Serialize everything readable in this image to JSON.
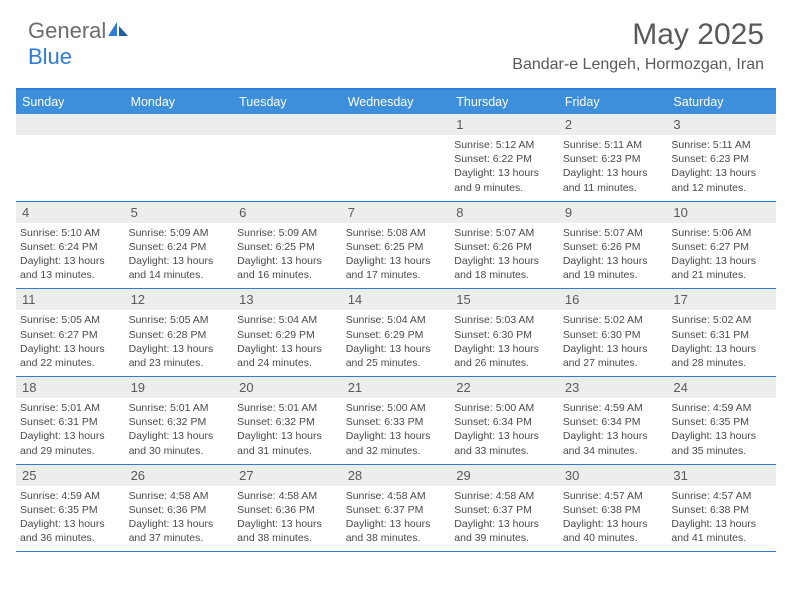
{
  "logo": {
    "text1": "General",
    "text2": "Blue"
  },
  "title": "May 2025",
  "location": "Bandar-e Lengeh, Hormozgan, Iran",
  "colors": {
    "header_bar": "#3d8fdb",
    "border": "#2e7cd6",
    "daynum_bg": "#eceded",
    "text": "#4a4a4a"
  },
  "weekdays": [
    "Sunday",
    "Monday",
    "Tuesday",
    "Wednesday",
    "Thursday",
    "Friday",
    "Saturday"
  ],
  "weeks": [
    [
      {
        "n": "",
        "sr": "",
        "ss": "",
        "dl": ""
      },
      {
        "n": "",
        "sr": "",
        "ss": "",
        "dl": ""
      },
      {
        "n": "",
        "sr": "",
        "ss": "",
        "dl": ""
      },
      {
        "n": "",
        "sr": "",
        "ss": "",
        "dl": ""
      },
      {
        "n": "1",
        "sr": "Sunrise: 5:12 AM",
        "ss": "Sunset: 6:22 PM",
        "dl": "Daylight: 13 hours and 9 minutes."
      },
      {
        "n": "2",
        "sr": "Sunrise: 5:11 AM",
        "ss": "Sunset: 6:23 PM",
        "dl": "Daylight: 13 hours and 11 minutes."
      },
      {
        "n": "3",
        "sr": "Sunrise: 5:11 AM",
        "ss": "Sunset: 6:23 PM",
        "dl": "Daylight: 13 hours and 12 minutes."
      }
    ],
    [
      {
        "n": "4",
        "sr": "Sunrise: 5:10 AM",
        "ss": "Sunset: 6:24 PM",
        "dl": "Daylight: 13 hours and 13 minutes."
      },
      {
        "n": "5",
        "sr": "Sunrise: 5:09 AM",
        "ss": "Sunset: 6:24 PM",
        "dl": "Daylight: 13 hours and 14 minutes."
      },
      {
        "n": "6",
        "sr": "Sunrise: 5:09 AM",
        "ss": "Sunset: 6:25 PM",
        "dl": "Daylight: 13 hours and 16 minutes."
      },
      {
        "n": "7",
        "sr": "Sunrise: 5:08 AM",
        "ss": "Sunset: 6:25 PM",
        "dl": "Daylight: 13 hours and 17 minutes."
      },
      {
        "n": "8",
        "sr": "Sunrise: 5:07 AM",
        "ss": "Sunset: 6:26 PM",
        "dl": "Daylight: 13 hours and 18 minutes."
      },
      {
        "n": "9",
        "sr": "Sunrise: 5:07 AM",
        "ss": "Sunset: 6:26 PM",
        "dl": "Daylight: 13 hours and 19 minutes."
      },
      {
        "n": "10",
        "sr": "Sunrise: 5:06 AM",
        "ss": "Sunset: 6:27 PM",
        "dl": "Daylight: 13 hours and 21 minutes."
      }
    ],
    [
      {
        "n": "11",
        "sr": "Sunrise: 5:05 AM",
        "ss": "Sunset: 6:27 PM",
        "dl": "Daylight: 13 hours and 22 minutes."
      },
      {
        "n": "12",
        "sr": "Sunrise: 5:05 AM",
        "ss": "Sunset: 6:28 PM",
        "dl": "Daylight: 13 hours and 23 minutes."
      },
      {
        "n": "13",
        "sr": "Sunrise: 5:04 AM",
        "ss": "Sunset: 6:29 PM",
        "dl": "Daylight: 13 hours and 24 minutes."
      },
      {
        "n": "14",
        "sr": "Sunrise: 5:04 AM",
        "ss": "Sunset: 6:29 PM",
        "dl": "Daylight: 13 hours and 25 minutes."
      },
      {
        "n": "15",
        "sr": "Sunrise: 5:03 AM",
        "ss": "Sunset: 6:30 PM",
        "dl": "Daylight: 13 hours and 26 minutes."
      },
      {
        "n": "16",
        "sr": "Sunrise: 5:02 AM",
        "ss": "Sunset: 6:30 PM",
        "dl": "Daylight: 13 hours and 27 minutes."
      },
      {
        "n": "17",
        "sr": "Sunrise: 5:02 AM",
        "ss": "Sunset: 6:31 PM",
        "dl": "Daylight: 13 hours and 28 minutes."
      }
    ],
    [
      {
        "n": "18",
        "sr": "Sunrise: 5:01 AM",
        "ss": "Sunset: 6:31 PM",
        "dl": "Daylight: 13 hours and 29 minutes."
      },
      {
        "n": "19",
        "sr": "Sunrise: 5:01 AM",
        "ss": "Sunset: 6:32 PM",
        "dl": "Daylight: 13 hours and 30 minutes."
      },
      {
        "n": "20",
        "sr": "Sunrise: 5:01 AM",
        "ss": "Sunset: 6:32 PM",
        "dl": "Daylight: 13 hours and 31 minutes."
      },
      {
        "n": "21",
        "sr": "Sunrise: 5:00 AM",
        "ss": "Sunset: 6:33 PM",
        "dl": "Daylight: 13 hours and 32 minutes."
      },
      {
        "n": "22",
        "sr": "Sunrise: 5:00 AM",
        "ss": "Sunset: 6:34 PM",
        "dl": "Daylight: 13 hours and 33 minutes."
      },
      {
        "n": "23",
        "sr": "Sunrise: 4:59 AM",
        "ss": "Sunset: 6:34 PM",
        "dl": "Daylight: 13 hours and 34 minutes."
      },
      {
        "n": "24",
        "sr": "Sunrise: 4:59 AM",
        "ss": "Sunset: 6:35 PM",
        "dl": "Daylight: 13 hours and 35 minutes."
      }
    ],
    [
      {
        "n": "25",
        "sr": "Sunrise: 4:59 AM",
        "ss": "Sunset: 6:35 PM",
        "dl": "Daylight: 13 hours and 36 minutes."
      },
      {
        "n": "26",
        "sr": "Sunrise: 4:58 AM",
        "ss": "Sunset: 6:36 PM",
        "dl": "Daylight: 13 hours and 37 minutes."
      },
      {
        "n": "27",
        "sr": "Sunrise: 4:58 AM",
        "ss": "Sunset: 6:36 PM",
        "dl": "Daylight: 13 hours and 38 minutes."
      },
      {
        "n": "28",
        "sr": "Sunrise: 4:58 AM",
        "ss": "Sunset: 6:37 PM",
        "dl": "Daylight: 13 hours and 38 minutes."
      },
      {
        "n": "29",
        "sr": "Sunrise: 4:58 AM",
        "ss": "Sunset: 6:37 PM",
        "dl": "Daylight: 13 hours and 39 minutes."
      },
      {
        "n": "30",
        "sr": "Sunrise: 4:57 AM",
        "ss": "Sunset: 6:38 PM",
        "dl": "Daylight: 13 hours and 40 minutes."
      },
      {
        "n": "31",
        "sr": "Sunrise: 4:57 AM",
        "ss": "Sunset: 6:38 PM",
        "dl": "Daylight: 13 hours and 41 minutes."
      }
    ]
  ]
}
